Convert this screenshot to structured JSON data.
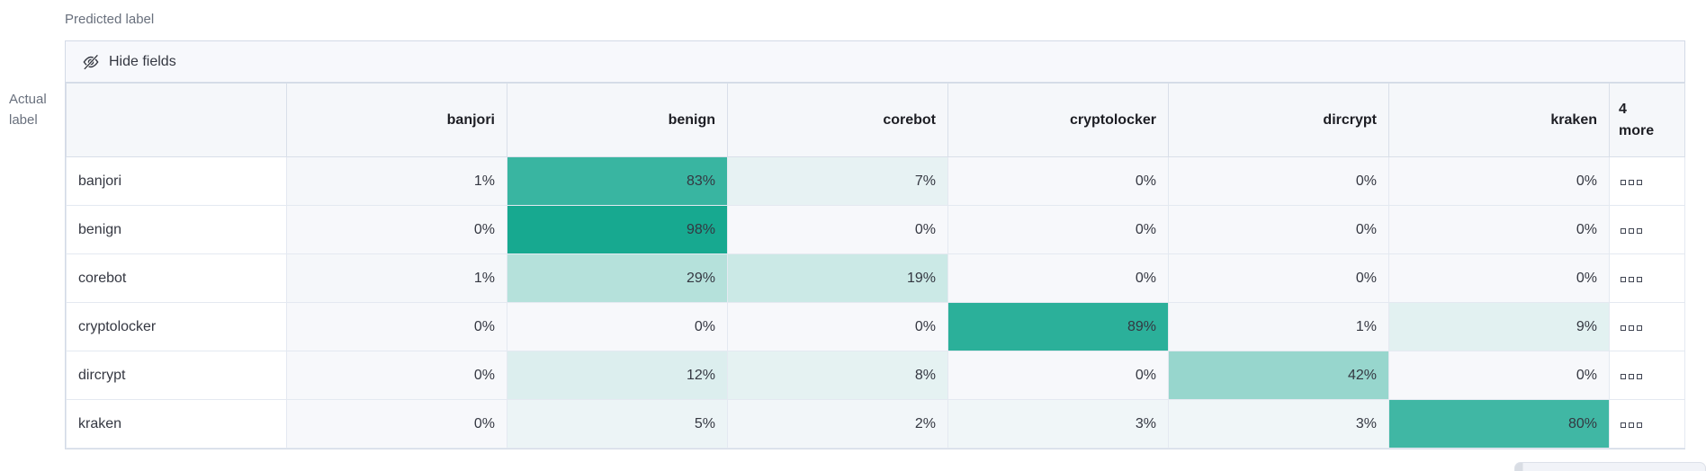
{
  "toolbar": {
    "hide_fields_label": "Hide fields"
  },
  "chart_data": {
    "type": "heatmap",
    "xlabel": "Predicted label",
    "ylabel": "Actual label",
    "columns": [
      "banjori",
      "benign",
      "corebot",
      "cryptolocker",
      "dircrypt",
      "kraken"
    ],
    "more_column": {
      "count": "4",
      "word": "more"
    },
    "rows": [
      "banjori",
      "benign",
      "corebot",
      "cryptolocker",
      "dircrypt",
      "kraken"
    ],
    "values_percent": [
      [
        1,
        83,
        7,
        0,
        0,
        0
      ],
      [
        0,
        98,
        0,
        0,
        0,
        0
      ],
      [
        1,
        29,
        19,
        0,
        0,
        0
      ],
      [
        0,
        0,
        0,
        89,
        1,
        9
      ],
      [
        0,
        12,
        8,
        0,
        42,
        0
      ],
      [
        0,
        5,
        2,
        3,
        3,
        80
      ]
    ],
    "value_suffix": "%",
    "colors": {
      "max": "#12A78E",
      "zero": "#F7F8FB",
      "text": "#343741"
    },
    "legend": "none",
    "grid": true
  }
}
